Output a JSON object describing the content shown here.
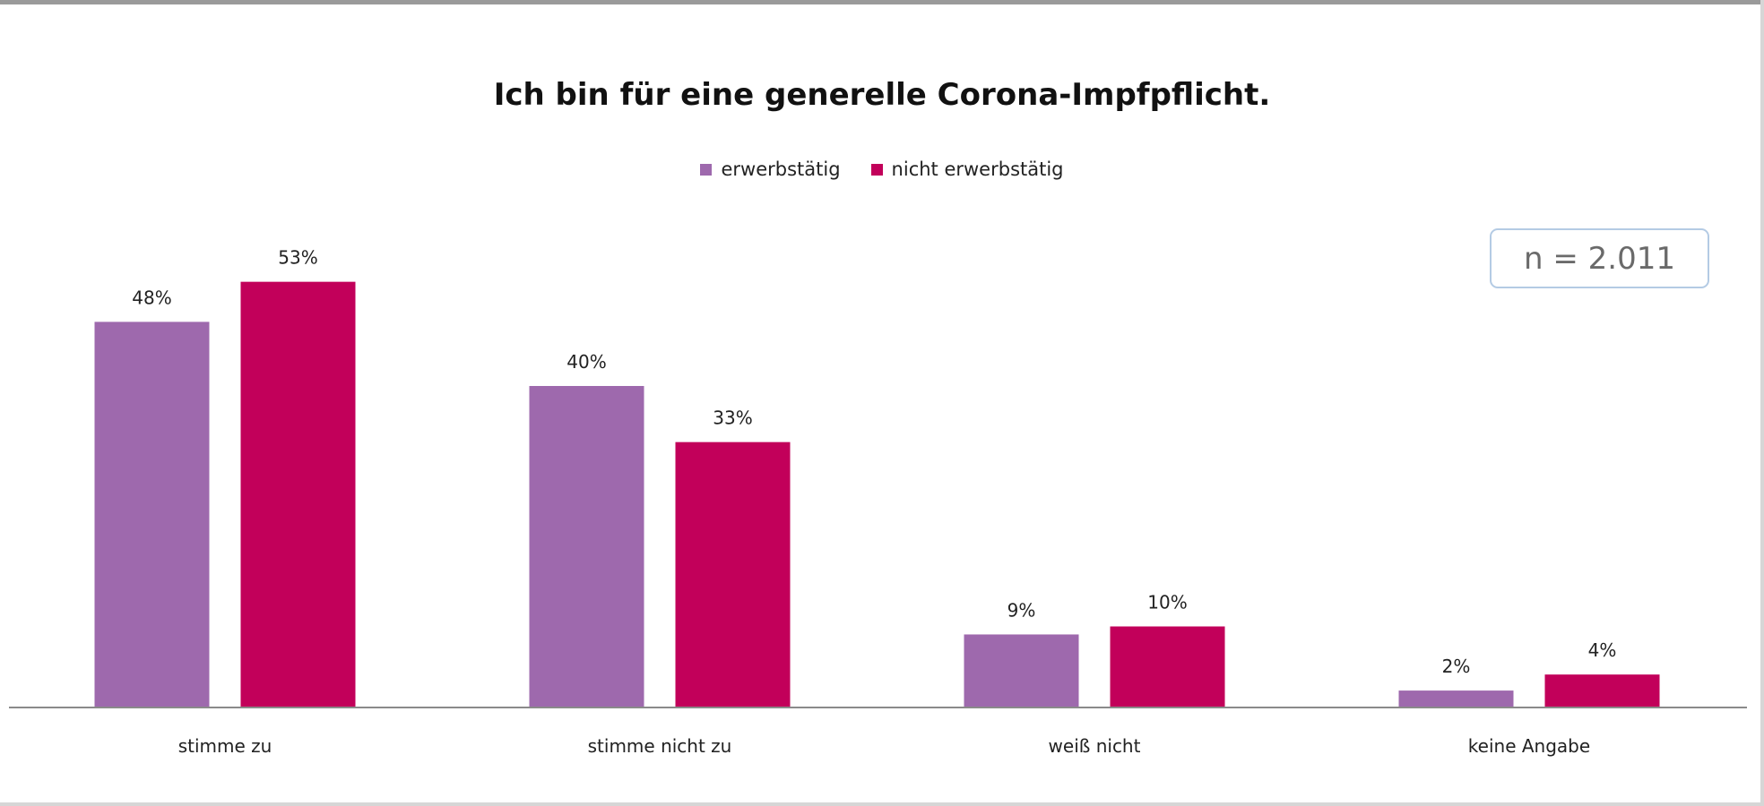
{
  "chart_data": {
    "type": "bar",
    "title": "Ich bin für eine generelle Corona-Impfpflicht.",
    "categories": [
      "stimme zu",
      "stimme nicht zu",
      "weiß nicht",
      "keine Angabe"
    ],
    "series": [
      {
        "name": "erwerbstätig",
        "color": "#9e69ad",
        "values": [
          48,
          40,
          9,
          2
        ],
        "labels": [
          "48%",
          "40%",
          "9%",
          "2%"
        ]
      },
      {
        "name": "nicht erwerbstätig",
        "color": "#c2005a",
        "values": [
          53,
          33,
          10,
          4
        ],
        "labels": [
          "53%",
          "33%",
          "10%",
          "4%"
        ]
      }
    ],
    "xlabel": "",
    "ylabel": "",
    "ylim": [
      0,
      60
    ],
    "grid": false,
    "legend_position": "top-center",
    "annotation": "n = 2.011"
  }
}
